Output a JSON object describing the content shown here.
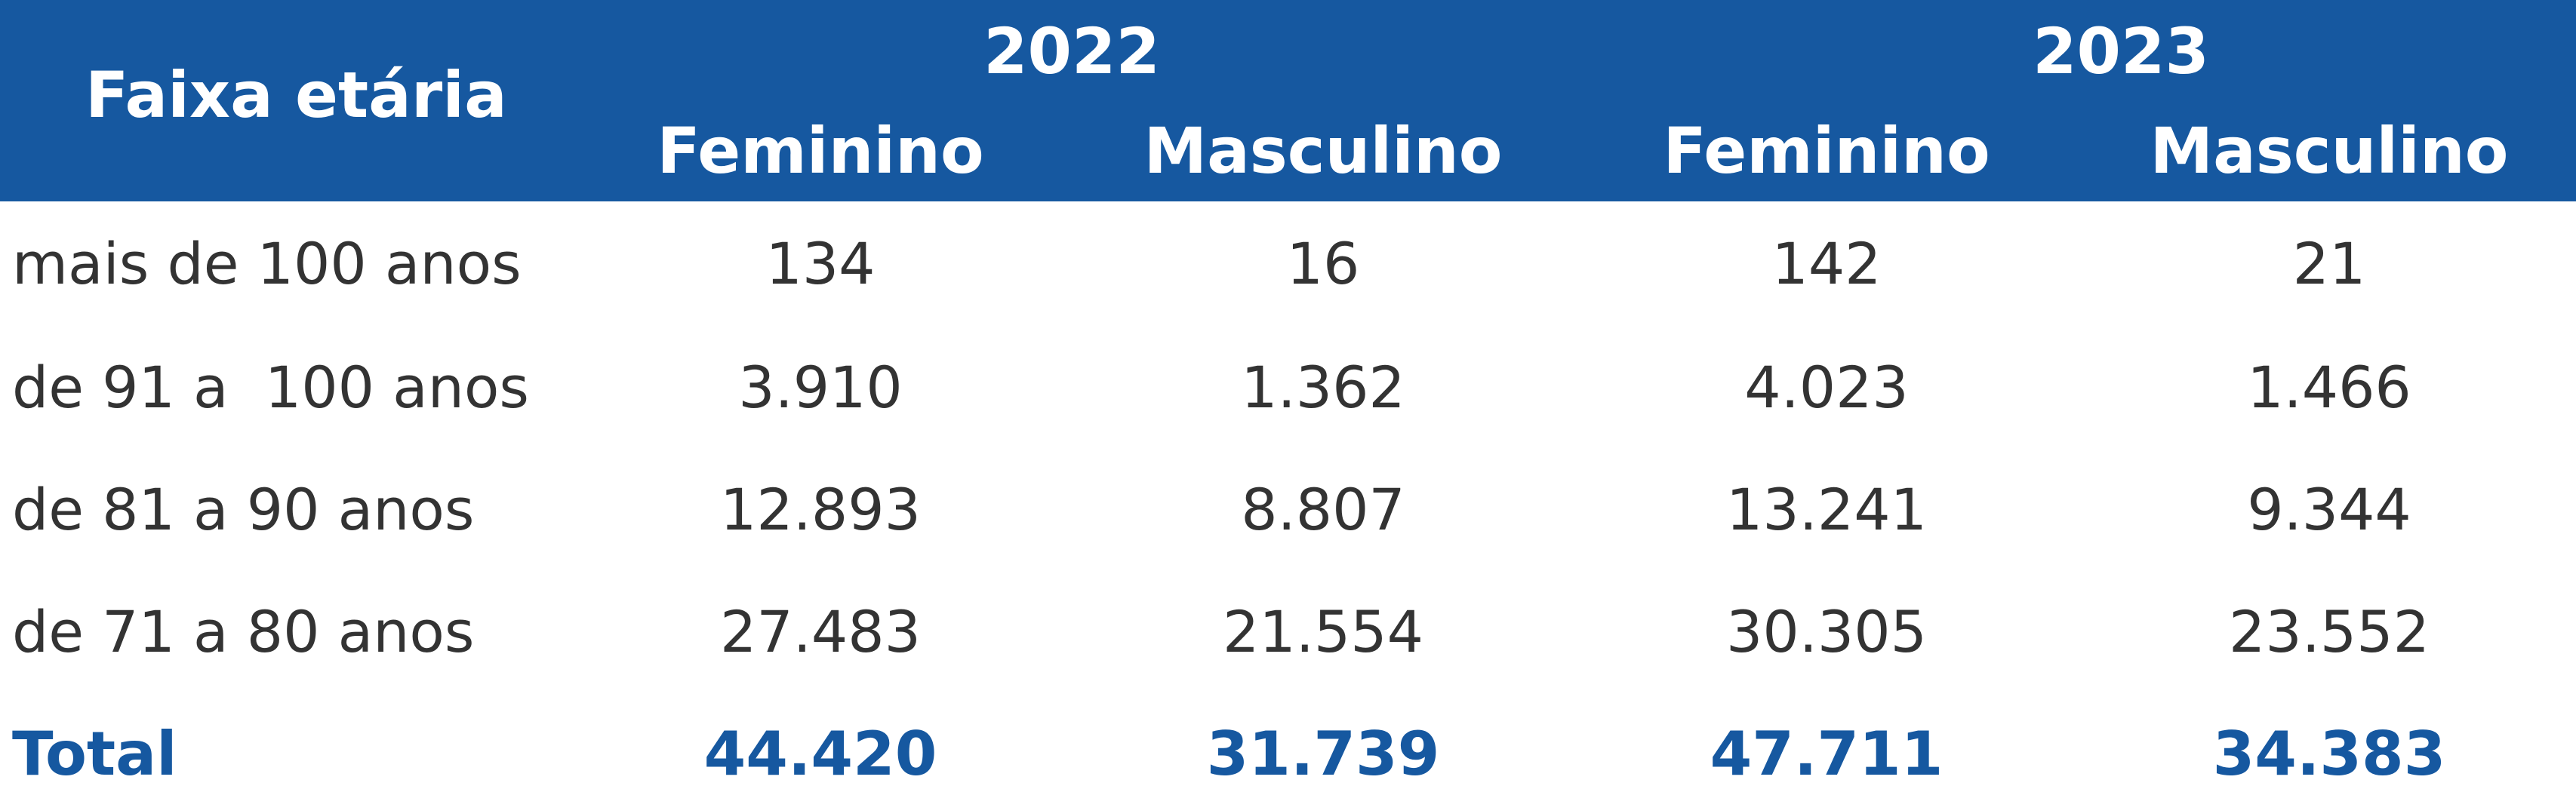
{
  "colors": {
    "header_bg": "#1658a0",
    "header_text": "#ffffff",
    "body_text": "#333333",
    "total_text": "#1658a0"
  },
  "chart_data": {
    "type": "table",
    "row_header_label": "Faixa etária",
    "years": [
      "2022",
      "2023"
    ],
    "sub_headers": [
      "Feminino",
      "Masculino",
      "Feminino",
      "Masculino"
    ],
    "rows": [
      {
        "label": "mais de 100 anos",
        "values": [
          "134",
          "16",
          "142",
          "21"
        ]
      },
      {
        "label": "de 91 a  100 anos",
        "values": [
          "3.910",
          "1.362",
          "4.023",
          "1.466"
        ]
      },
      {
        "label": "de 81 a 90 anos",
        "values": [
          "12.893",
          "8.807",
          "13.241",
          "9.344"
        ]
      },
      {
        "label": "de 71 a 80 anos",
        "values": [
          "27.483",
          "21.554",
          "30.305",
          "23.552"
        ]
      }
    ],
    "total": {
      "label": "Total",
      "values": [
        "44.420",
        "31.739",
        "47.711",
        "34.383"
      ]
    }
  }
}
